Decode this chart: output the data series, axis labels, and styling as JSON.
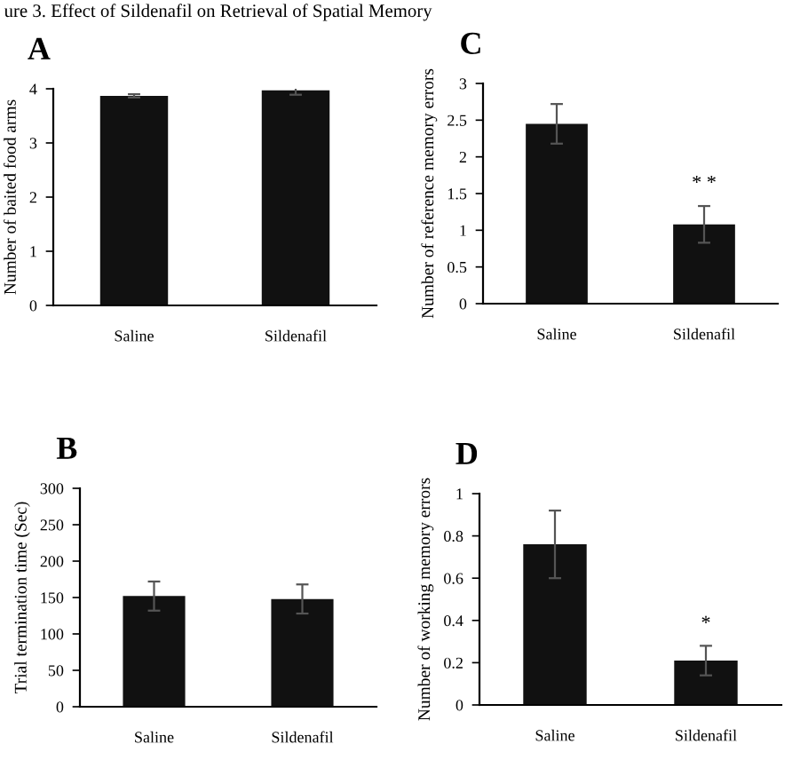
{
  "chart_data": [
    {
      "type": "bar",
      "title": "A",
      "subtitle": "ure 3. Effect of Sildenafil on Retrieval of Spatial Memory",
      "ylabel": "Number of baited food arms",
      "categories": [
        "Saline",
        "Sildenafil"
      ],
      "values": [
        3.87,
        3.97
      ],
      "errors": [
        0.03,
        0.08
      ],
      "color": "#111111",
      "ylim": [
        0,
        4
      ],
      "yticks": [
        0,
        1,
        2,
        3,
        4
      ],
      "grid": false
    },
    {
      "type": "bar",
      "title": "C",
      "ylabel": "Number of reference memory errors",
      "categories": [
        "Saline",
        "Sildenafil"
      ],
      "values": [
        2.45,
        1.08
      ],
      "errors": [
        0.27,
        0.25
      ],
      "color": "#111111",
      "ylim": [
        0,
        3
      ],
      "yticks": [
        0,
        0.5,
        1,
        1.5,
        2,
        2.5,
        3
      ],
      "grid": false,
      "annotations": [
        "* *"
      ]
    },
    {
      "type": "bar",
      "title": "B",
      "ylabel": "Trial termination time (Sec)",
      "categories": [
        "Saline",
        "Sildenafil"
      ],
      "values": [
        152,
        148
      ],
      "errors": [
        20,
        20
      ],
      "color": "#111111",
      "ylim": [
        0,
        300
      ],
      "yticks": [
        0,
        50,
        100,
        150,
        200,
        250,
        300
      ],
      "grid": false
    },
    {
      "type": "bar",
      "title": "D",
      "ylabel": "Number of working memory errors",
      "categories": [
        "Saline",
        "Sildenafil"
      ],
      "values": [
        0.76,
        0.21
      ],
      "errors": [
        0.16,
        0.07
      ],
      "color": "#111111",
      "ylim": [
        0,
        1
      ],
      "yticks": [
        0,
        0.2,
        0.4,
        0.6,
        0.8,
        1
      ],
      "grid": false,
      "annotations": [
        "*"
      ]
    }
  ]
}
